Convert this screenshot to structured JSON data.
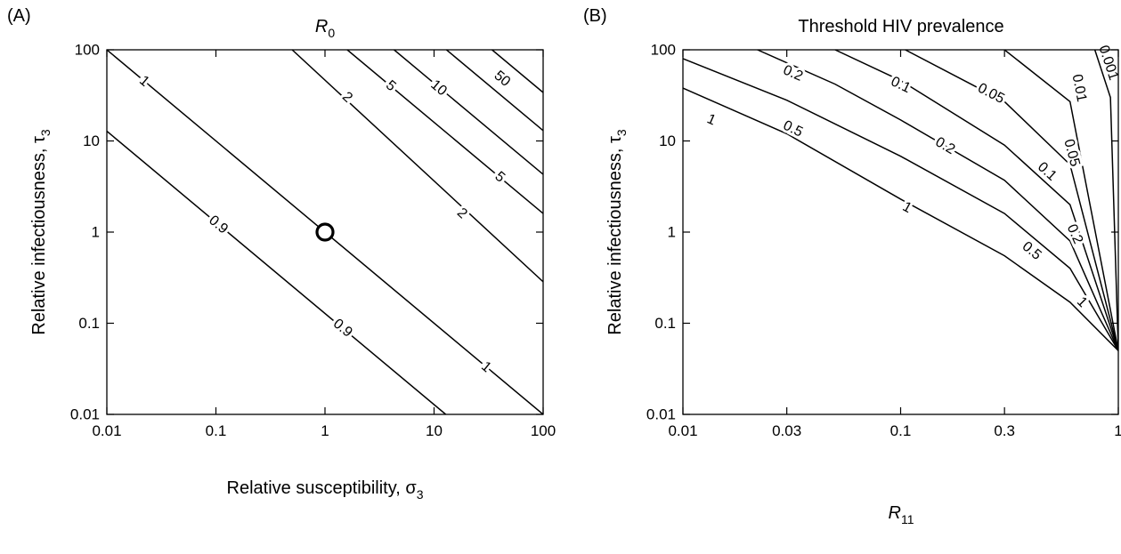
{
  "chart_data": [
    {
      "type": "contour",
      "panel_label": "(A)",
      "title": "R",
      "title_subscript": "0",
      "xlabel": "Relative susceptibility, ",
      "xlabel_symbol": "σ",
      "xlabel_subscript": "3",
      "ylabel": "Relative infectiousness, ",
      "ylabel_symbol": "τ",
      "ylabel_subscript": "3",
      "xscale": "log",
      "yscale": "log",
      "xlim": [
        0.01,
        100
      ],
      "ylim": [
        0.01,
        100
      ],
      "xticks": [
        0.01,
        0.1,
        1,
        10,
        100
      ],
      "xtick_labels": [
        "0.01",
        "0.1",
        "1",
        "10",
        "100"
      ],
      "yticks": [
        0.01,
        0.1,
        1,
        10,
        100
      ],
      "ytick_labels": [
        "0.01",
        "0.1",
        "1",
        "10",
        "100"
      ],
      "lines": [
        {
          "points": [
            [
              0.01,
              12.8
            ],
            [
              12.8,
              0.01
            ]
          ],
          "labels": [
            {
              "text": "0.9",
              "at": [
                0.105,
                1.2
              ]
            },
            {
              "text": "0.9",
              "at": [
                1.45,
                0.088
              ]
            }
          ]
        },
        {
          "points": [
            [
              0.01,
              100
            ],
            [
              100,
              0.01
            ]
          ],
          "labels": [
            {
              "text": "1",
              "at": [
                0.022,
                45
              ]
            },
            {
              "text": "1",
              "at": [
                30,
                0.033
              ]
            }
          ]
        },
        {
          "points": [
            [
              0.5,
              100
            ],
            [
              100,
              0.285
            ]
          ],
          "labels": [
            {
              "text": "2",
              "at": [
                1.6,
                30
              ]
            },
            {
              "text": "2",
              "at": [
                18,
                1.6
              ]
            }
          ]
        },
        {
          "points": [
            [
              1.6,
              100
            ],
            [
              100,
              1.6
            ]
          ],
          "labels": [
            {
              "text": "5",
              "at": [
                4,
                40
              ]
            },
            {
              "text": "5",
              "at": [
                40,
                4
              ]
            }
          ]
        },
        {
          "points": [
            [
              4.3,
              100
            ],
            [
              100,
              4.3
            ]
          ],
          "labels": [
            {
              "text": "10",
              "at": [
                11,
                38
              ]
            }
          ]
        },
        {
          "points": [
            [
              13,
              100
            ],
            [
              100,
              13
            ]
          ],
          "labels": [
            {
              "text": "50",
              "at": [
                42,
                48
              ]
            }
          ]
        },
        {
          "points": [
            [
              34,
              100
            ],
            [
              100,
              34
            ]
          ],
          "labels": []
        }
      ],
      "marker": {
        "shape": "open-circle",
        "x": 1,
        "y": 1
      }
    },
    {
      "type": "contour",
      "panel_label": "(B)",
      "title": "Threshold HIV prevalence",
      "xlabel": "R",
      "xlabel_subscript": "11",
      "ylabel": "Relative infectiousness, ",
      "ylabel_symbol": "τ",
      "ylabel_subscript": "3",
      "xscale": "log",
      "yscale": "log",
      "xlim": [
        0.01,
        1
      ],
      "ylim": [
        0.01,
        100
      ],
      "xticks": [
        0.01,
        0.03,
        0.1,
        0.3,
        1
      ],
      "xtick_labels": [
        "0.01",
        "0.03",
        "0.1",
        "0.3",
        "1"
      ],
      "yticks": [
        0.01,
        0.1,
        1,
        10,
        100
      ],
      "ytick_labels": [
        "0.01",
        "0.1",
        "1",
        "10",
        "100"
      ],
      "lines": [
        {
          "points": [
            [
              0.01,
              38
            ],
            [
              0.03,
              12
            ],
            [
              0.1,
              2.3
            ],
            [
              0.3,
              0.55
            ],
            [
              0.6,
              0.17
            ],
            [
              1,
              0.05
            ]
          ],
          "labels": [
            {
              "text": "1",
              "at": [
                0.0135,
                17
              ]
            },
            {
              "text": "1",
              "at": [
                0.107,
                1.85
              ]
            },
            {
              "text": "1",
              "at": [
                0.68,
                0.17
              ]
            }
          ]
        },
        {
          "points": [
            [
              0.01,
              80
            ],
            [
              0.03,
              28
            ],
            [
              0.1,
              6.8
            ],
            [
              0.3,
              1.6
            ],
            [
              0.6,
              0.4
            ],
            [
              1,
              0.05
            ]
          ],
          "labels": [
            {
              "text": "0.5",
              "at": [
                0.032,
                13.5
              ]
            },
            {
              "text": "0.5",
              "at": [
                0.4,
                0.62
              ]
            }
          ]
        },
        {
          "points": [
            [
              0.022,
              100
            ],
            [
              0.05,
              42
            ],
            [
              0.1,
              17
            ],
            [
              0.3,
              3.7
            ],
            [
              0.6,
              0.8
            ],
            [
              1,
              0.05
            ]
          ],
          "labels": [
            {
              "text": "0.2",
              "at": [
                0.032,
                55
              ]
            },
            {
              "text": "0.2",
              "at": [
                0.16,
                8.8
              ]
            },
            {
              "text": "0.2",
              "at": [
                0.63,
                0.95
              ]
            }
          ]
        },
        {
          "points": [
            [
              0.05,
              100
            ],
            [
              0.1,
              46
            ],
            [
              0.3,
              9
            ],
            [
              0.6,
              2
            ],
            [
              1,
              0.05
            ]
          ],
          "labels": [
            {
              "text": "0.1",
              "at": [
                0.1,
                41
              ]
            },
            {
              "text": "0.1",
              "at": [
                0.47,
                4.6
              ]
            }
          ]
        },
        {
          "points": [
            [
              0.105,
              100
            ],
            [
              0.3,
              27
            ],
            [
              0.6,
              5.5
            ],
            [
              1,
              0.05
            ]
          ],
          "labels": [
            {
              "text": "0.05",
              "at": [
                0.26,
                33
              ]
            },
            {
              "text": "0.05",
              "at": [
                0.61,
                7.4
              ]
            }
          ]
        },
        {
          "points": [
            [
              0.3,
              100
            ],
            [
              0.6,
              27
            ],
            [
              1,
              0.05
            ]
          ],
          "labels": [
            {
              "text": "0.01",
              "at": [
                0.66,
                38
              ]
            }
          ]
        },
        {
          "points": [
            [
              0.78,
              100
            ],
            [
              0.92,
              30
            ],
            [
              1,
              0.05
            ]
          ],
          "labels": [
            {
              "text": "0.001",
              "at": [
                0.9,
                72
              ]
            }
          ]
        }
      ],
      "convergence_point": {
        "x": 1,
        "y": 0.05
      }
    }
  ]
}
